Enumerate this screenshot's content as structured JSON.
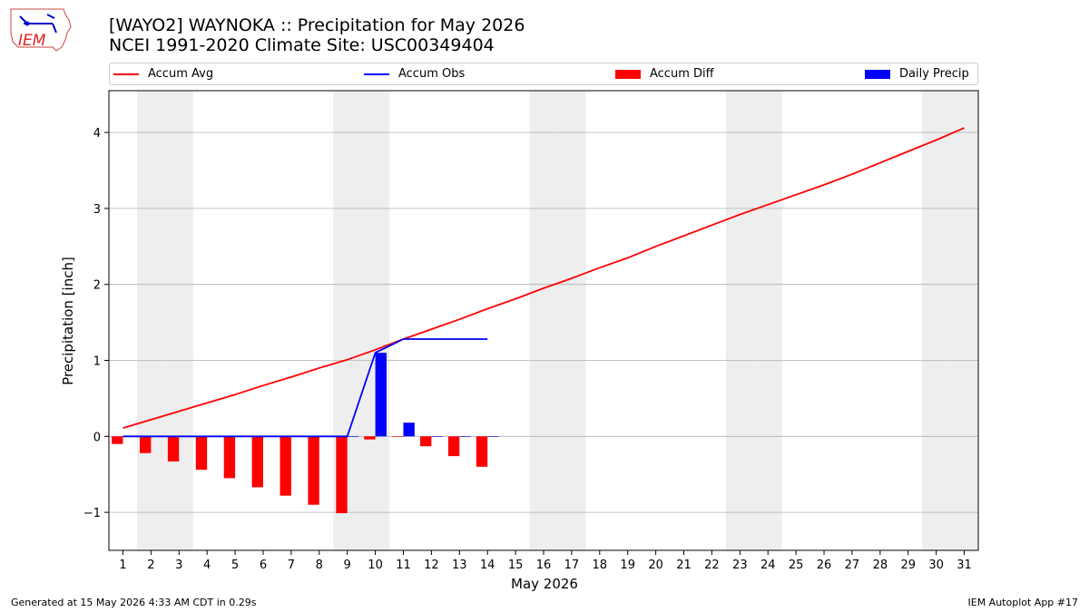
{
  "title_line1": "[WAYO2] WAYNOKA :: Precipitation for May 2026",
  "title_line2": "NCEI 1991-2020 Climate Site: USC00349404",
  "logo_text": "IEM",
  "footer_left": "Generated at 15 May 2026 4:33 AM CDT in 0.29s",
  "footer_right": "IEM Autoplot App #17",
  "colors": {
    "avg": "#ff0000",
    "obs": "#0000ff",
    "diff": "#ff0000",
    "daily": "#0000ff",
    "weekend": "#eeeeee",
    "grid": "#b0b0b0"
  },
  "chart_data": {
    "type": "bar",
    "xlabel": "May 2026",
    "ylabel": "Precipitation [inch]",
    "xlim": [
      0.5,
      31.5
    ],
    "ylim": [
      -1.5,
      4.55
    ],
    "yticks": [
      -1,
      0,
      1,
      2,
      3,
      4
    ],
    "ytick_labels": [
      "−1",
      "0",
      "1",
      "2",
      "3",
      "4"
    ],
    "days": [
      1,
      2,
      3,
      4,
      5,
      6,
      7,
      8,
      9,
      10,
      11,
      12,
      13,
      14,
      15,
      16,
      17,
      18,
      19,
      20,
      21,
      22,
      23,
      24,
      25,
      26,
      27,
      28,
      29,
      30,
      31
    ],
    "weekend_days": [
      2,
      3,
      9,
      10,
      16,
      17,
      23,
      24,
      30,
      31
    ],
    "legend": [
      "Accum Avg",
      "Accum Obs",
      "Accum Diff",
      "Daily Precip"
    ],
    "series": [
      {
        "name": "Accum Avg",
        "kind": "line",
        "x": [
          1,
          2,
          3,
          4,
          5,
          6,
          7,
          8,
          9,
          10,
          11,
          12,
          13,
          14,
          15,
          16,
          17,
          18,
          19,
          20,
          21,
          22,
          23,
          24,
          25,
          26,
          27,
          28,
          29,
          30,
          31
        ],
        "values": [
          0.11,
          0.22,
          0.33,
          0.44,
          0.55,
          0.67,
          0.78,
          0.9,
          1.01,
          1.14,
          1.28,
          1.41,
          1.54,
          1.68,
          1.81,
          1.95,
          2.08,
          2.22,
          2.35,
          2.5,
          2.64,
          2.78,
          2.92,
          3.05,
          3.18,
          3.31,
          3.45,
          3.6,
          3.75,
          3.9,
          4.06
        ]
      },
      {
        "name": "Accum Obs",
        "kind": "line",
        "x": [
          1,
          2,
          3,
          4,
          5,
          6,
          7,
          8,
          9,
          10,
          11,
          12,
          13,
          14
        ],
        "values": [
          0,
          0,
          0,
          0,
          0,
          0,
          0,
          0,
          0,
          1.1,
          1.28,
          1.28,
          1.28,
          1.28
        ]
      },
      {
        "name": "Accum Diff",
        "kind": "bar",
        "x": [
          1,
          2,
          3,
          4,
          5,
          6,
          7,
          8,
          9,
          10,
          11,
          12,
          13,
          14
        ],
        "values": [
          -0.1,
          -0.22,
          -0.33,
          -0.44,
          -0.55,
          -0.67,
          -0.78,
          -0.9,
          -1.01,
          -0.04,
          0.0,
          -0.13,
          -0.26,
          -0.4
        ]
      },
      {
        "name": "Daily Precip",
        "kind": "bar",
        "x": [
          1,
          2,
          3,
          4,
          5,
          6,
          7,
          8,
          9,
          10,
          11,
          12,
          13,
          14
        ],
        "values": [
          0,
          0,
          0,
          0,
          0,
          0,
          0,
          0,
          0,
          1.1,
          0.18,
          0,
          0,
          0
        ]
      }
    ]
  }
}
